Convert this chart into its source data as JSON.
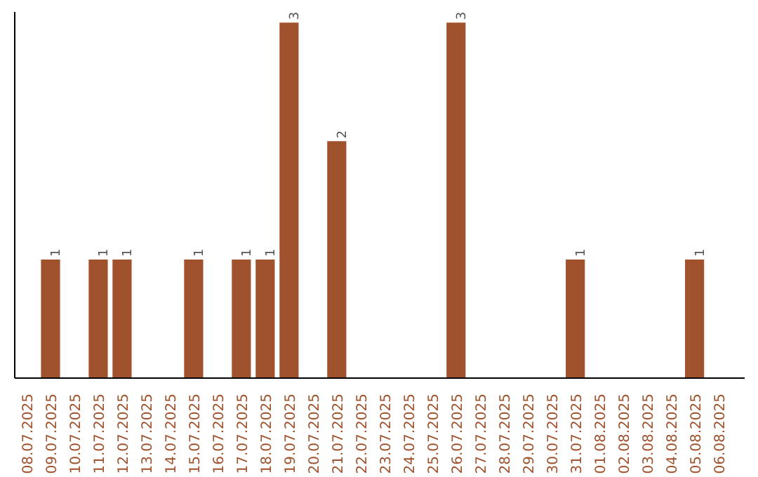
{
  "chart_data": {
    "type": "bar",
    "categories": [
      "08.07.2025",
      "09.07.2025",
      "10.07.2025",
      "11.07.2025",
      "12.07.2025",
      "13.07.2025",
      "14.07.2025",
      "15.07.2025",
      "16.07.2025",
      "17.07.2025",
      "18.07.2025",
      "19.07.2025",
      "20.07.2025",
      "21.07.2025",
      "22.07.2025",
      "23.07.2025",
      "24.07.2025",
      "25.07.2025",
      "26.07.2025",
      "27.07.2025",
      "28.07.2025",
      "29.07.2025",
      "30.07.2025",
      "31.07.2025",
      "01.08.2025",
      "02.08.2025",
      "03.08.2025",
      "04.08.2025",
      "05.08.2025",
      "06.08.2025"
    ],
    "values": [
      0,
      1,
      0,
      1,
      1,
      0,
      0,
      1,
      0,
      1,
      1,
      3,
      0,
      2,
      0,
      0,
      0,
      0,
      3,
      0,
      0,
      0,
      0,
      1,
      0,
      0,
      0,
      0,
      1,
      0
    ],
    "value_labels": [
      null,
      "1",
      null,
      "1",
      "1",
      null,
      null,
      "1",
      null,
      "1",
      "1",
      "3",
      null,
      "2",
      null,
      null,
      null,
      null,
      "3",
      null,
      null,
      null,
      null,
      "1",
      null,
      null,
      null,
      null,
      "1",
      null
    ],
    "color": "#a0522d",
    "grid": false,
    "tick_labels": "x"
  }
}
